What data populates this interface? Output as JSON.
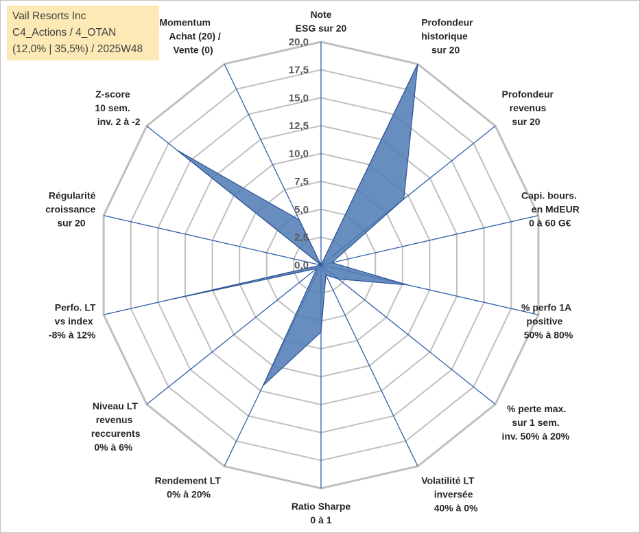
{
  "header": {
    "line1": "Vail Resorts Inc",
    "line2": "C4_Actions / 4_OTAN",
    "line3": "(12,0% | 35,5%) / 2025W48"
  },
  "chart_data": {
    "type": "radar",
    "rmin": 0,
    "rmax": 20,
    "tick_step": 2.5,
    "tick_labels": [
      "0,0",
      "2,5",
      "5,0",
      "7,5",
      "10,0",
      "12,5",
      "15,0",
      "17,5",
      "20,0"
    ],
    "grid": true,
    "grid_color": "#bfbfbf",
    "spoke_color": "#2f5fa8",
    "fill_color": "#4e79b4",
    "fill_stroke": "#2f5496",
    "axes": [
      {
        "label": [
          "Note",
          "ESG sur 20"
        ]
      },
      {
        "label": [
          "Profondeur",
          "historique",
          "sur 20"
        ]
      },
      {
        "label": [
          "Profondeur",
          "revenus",
          "sur 20"
        ]
      },
      {
        "label": [
          "Capi. bours.",
          "en MdEUR",
          "0 à 60 G€"
        ]
      },
      {
        "label": [
          "% perfo 1A",
          "positive",
          "50% à 80%"
        ]
      },
      {
        "label": [
          "% perte max.",
          "sur 1 sem.",
          "inv. 50% à 20%"
        ]
      },
      {
        "label": [
          "Volatilité LT",
          "inversée",
          "40% à 0%"
        ]
      },
      {
        "label": [
          "Ratio Sharpe",
          "0 à 1"
        ]
      },
      {
        "label": [
          "Rendement LT",
          "0% à 20%"
        ]
      },
      {
        "label": [
          "Niveau LT",
          "revenus",
          "reccurents",
          "0% à 6%"
        ]
      },
      {
        "label": [
          "Perfo. LT",
          "vs index",
          "-8% à 12%"
        ]
      },
      {
        "label": [
          "Régularité",
          "croissance",
          "sur 20"
        ]
      },
      {
        "label": [
          "Z-score",
          "10 sem.",
          "inv. 2 à -2"
        ]
      },
      {
        "label": [
          "Momentum",
          "Achat (20) /",
          "Vente (0)"
        ]
      }
    ],
    "series": [
      {
        "values": [
          0.0,
          20.0,
          9.5,
          1.0,
          8.0,
          2.0,
          1.0,
          6.0,
          12.0,
          0.5,
          14.0,
          0.0,
          16.5,
          4.5
        ]
      }
    ]
  }
}
